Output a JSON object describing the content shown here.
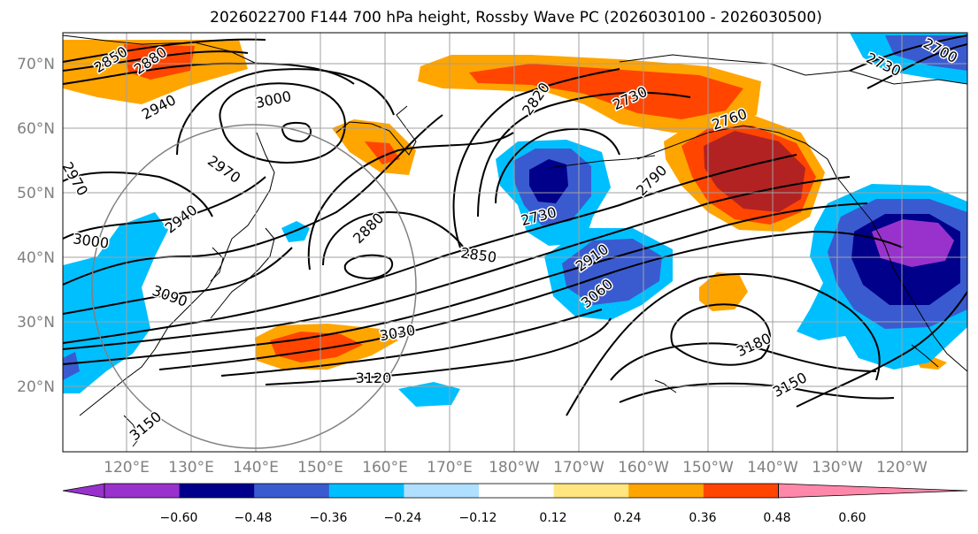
{
  "title": "2026022700 F144 700 hPa height, Rossby Wave PC (2026030100 - 2026030500)",
  "map": {
    "lat_labels": [
      "70°N",
      "60°N",
      "50°N",
      "40°N",
      "30°N",
      "20°N"
    ],
    "lon_labels": [
      "120°E",
      "130°E",
      "140°E",
      "150°E",
      "160°E",
      "170°E",
      "180°W",
      "170°W",
      "160°W",
      "150°W",
      "140°W",
      "130°W",
      "120°W"
    ],
    "contour_labels": [
      "2850",
      "2880",
      "2940",
      "3000",
      "2970",
      "2970",
      "2940",
      "3000",
      "3090",
      "2880",
      "2850",
      "2820",
      "2730",
      "2760",
      "2790",
      "2730",
      "2910",
      "3060",
      "3030",
      "3120",
      "3180",
      "3150",
      "2700",
      "2730",
      "3150"
    ]
  },
  "colorbar": {
    "tick_labels": [
      "−0.60",
      "−0.48",
      "−0.36",
      "−0.24",
      "−0.12",
      "0.12",
      "0.24",
      "0.36",
      "0.48",
      "0.60"
    ],
    "colors": [
      "#9932CC",
      "#00008B",
      "#3A5BD0",
      "#00BFFF",
      "#B0E0FF",
      "#FFFFFF",
      "#FFE680",
      "#FFA500",
      "#FF4500",
      "#B22222",
      "#FF88AA"
    ]
  }
}
